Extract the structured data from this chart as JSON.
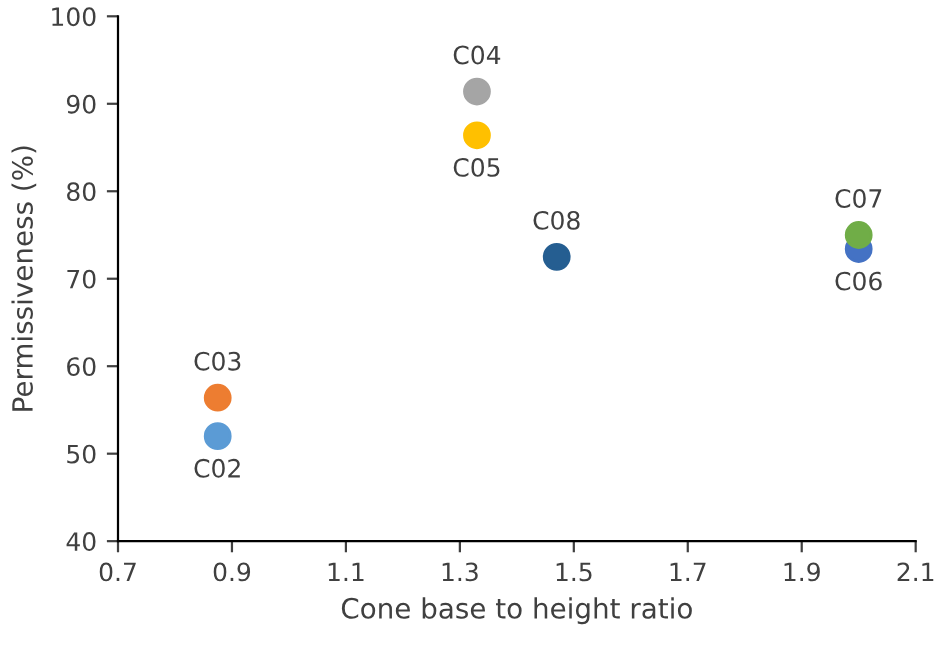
{
  "chart_data": {
    "type": "scatter",
    "xlabel": "Cone base to height ratio",
    "ylabel": "Permissiveness (%)",
    "xlim": [
      0.7,
      2.1
    ],
    "xticks": [
      0.7,
      0.9,
      1.1,
      1.3,
      1.5,
      1.7,
      1.9,
      2.1
    ],
    "ylim": [
      40,
      100
    ],
    "yticks": [
      40,
      50,
      60,
      70,
      80,
      90,
      100
    ],
    "grid": false,
    "legend": false,
    "marker": "circle",
    "series": [
      {
        "name": "C02",
        "color": "#5b9bd5",
        "x": [
          0.875
        ],
        "values": [
          52.0
        ]
      },
      {
        "name": "C03",
        "color": "#ed7d31",
        "x": [
          0.875
        ],
        "values": [
          56.4
        ]
      },
      {
        "name": "C04",
        "color": "#a5a5a5",
        "x": [
          1.33
        ],
        "values": [
          91.4
        ]
      },
      {
        "name": "C05",
        "color": "#ffc000",
        "x": [
          1.33
        ],
        "values": [
          86.4
        ]
      },
      {
        "name": "C06",
        "color": "#4472c4",
        "x": [
          2.0
        ],
        "values": [
          73.4
        ]
      },
      {
        "name": "C07",
        "color": "#70ad47",
        "x": [
          2.0
        ],
        "values": [
          75.0
        ]
      },
      {
        "name": "C08",
        "color": "#255e91",
        "x": [
          1.47
        ],
        "values": [
          72.5
        ]
      }
    ]
  }
}
